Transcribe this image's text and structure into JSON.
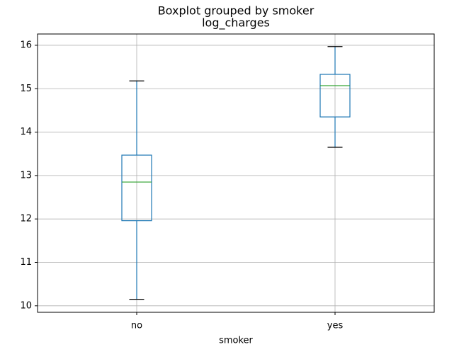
{
  "chart_data": {
    "type": "box",
    "title": "Boxplot grouped by smoker",
    "subtitle": "log_charges",
    "x_label": "smoker",
    "categories": [
      "no",
      "yes"
    ],
    "boxes": [
      {
        "low": 10.15,
        "q1": 11.96,
        "median": 12.85,
        "q3": 13.47,
        "high": 15.18
      },
      {
        "low": 13.65,
        "q1": 14.35,
        "median": 15.07,
        "q3": 15.33,
        "high": 15.97
      }
    ],
    "box_color": "#1f77b4",
    "median_color": "#2ca02c",
    "cap_color": "#000000",
    "ylim": [
      9.85,
      16.26
    ],
    "yticks": [
      10,
      11,
      12,
      13,
      14,
      15,
      16
    ],
    "grid": true
  }
}
